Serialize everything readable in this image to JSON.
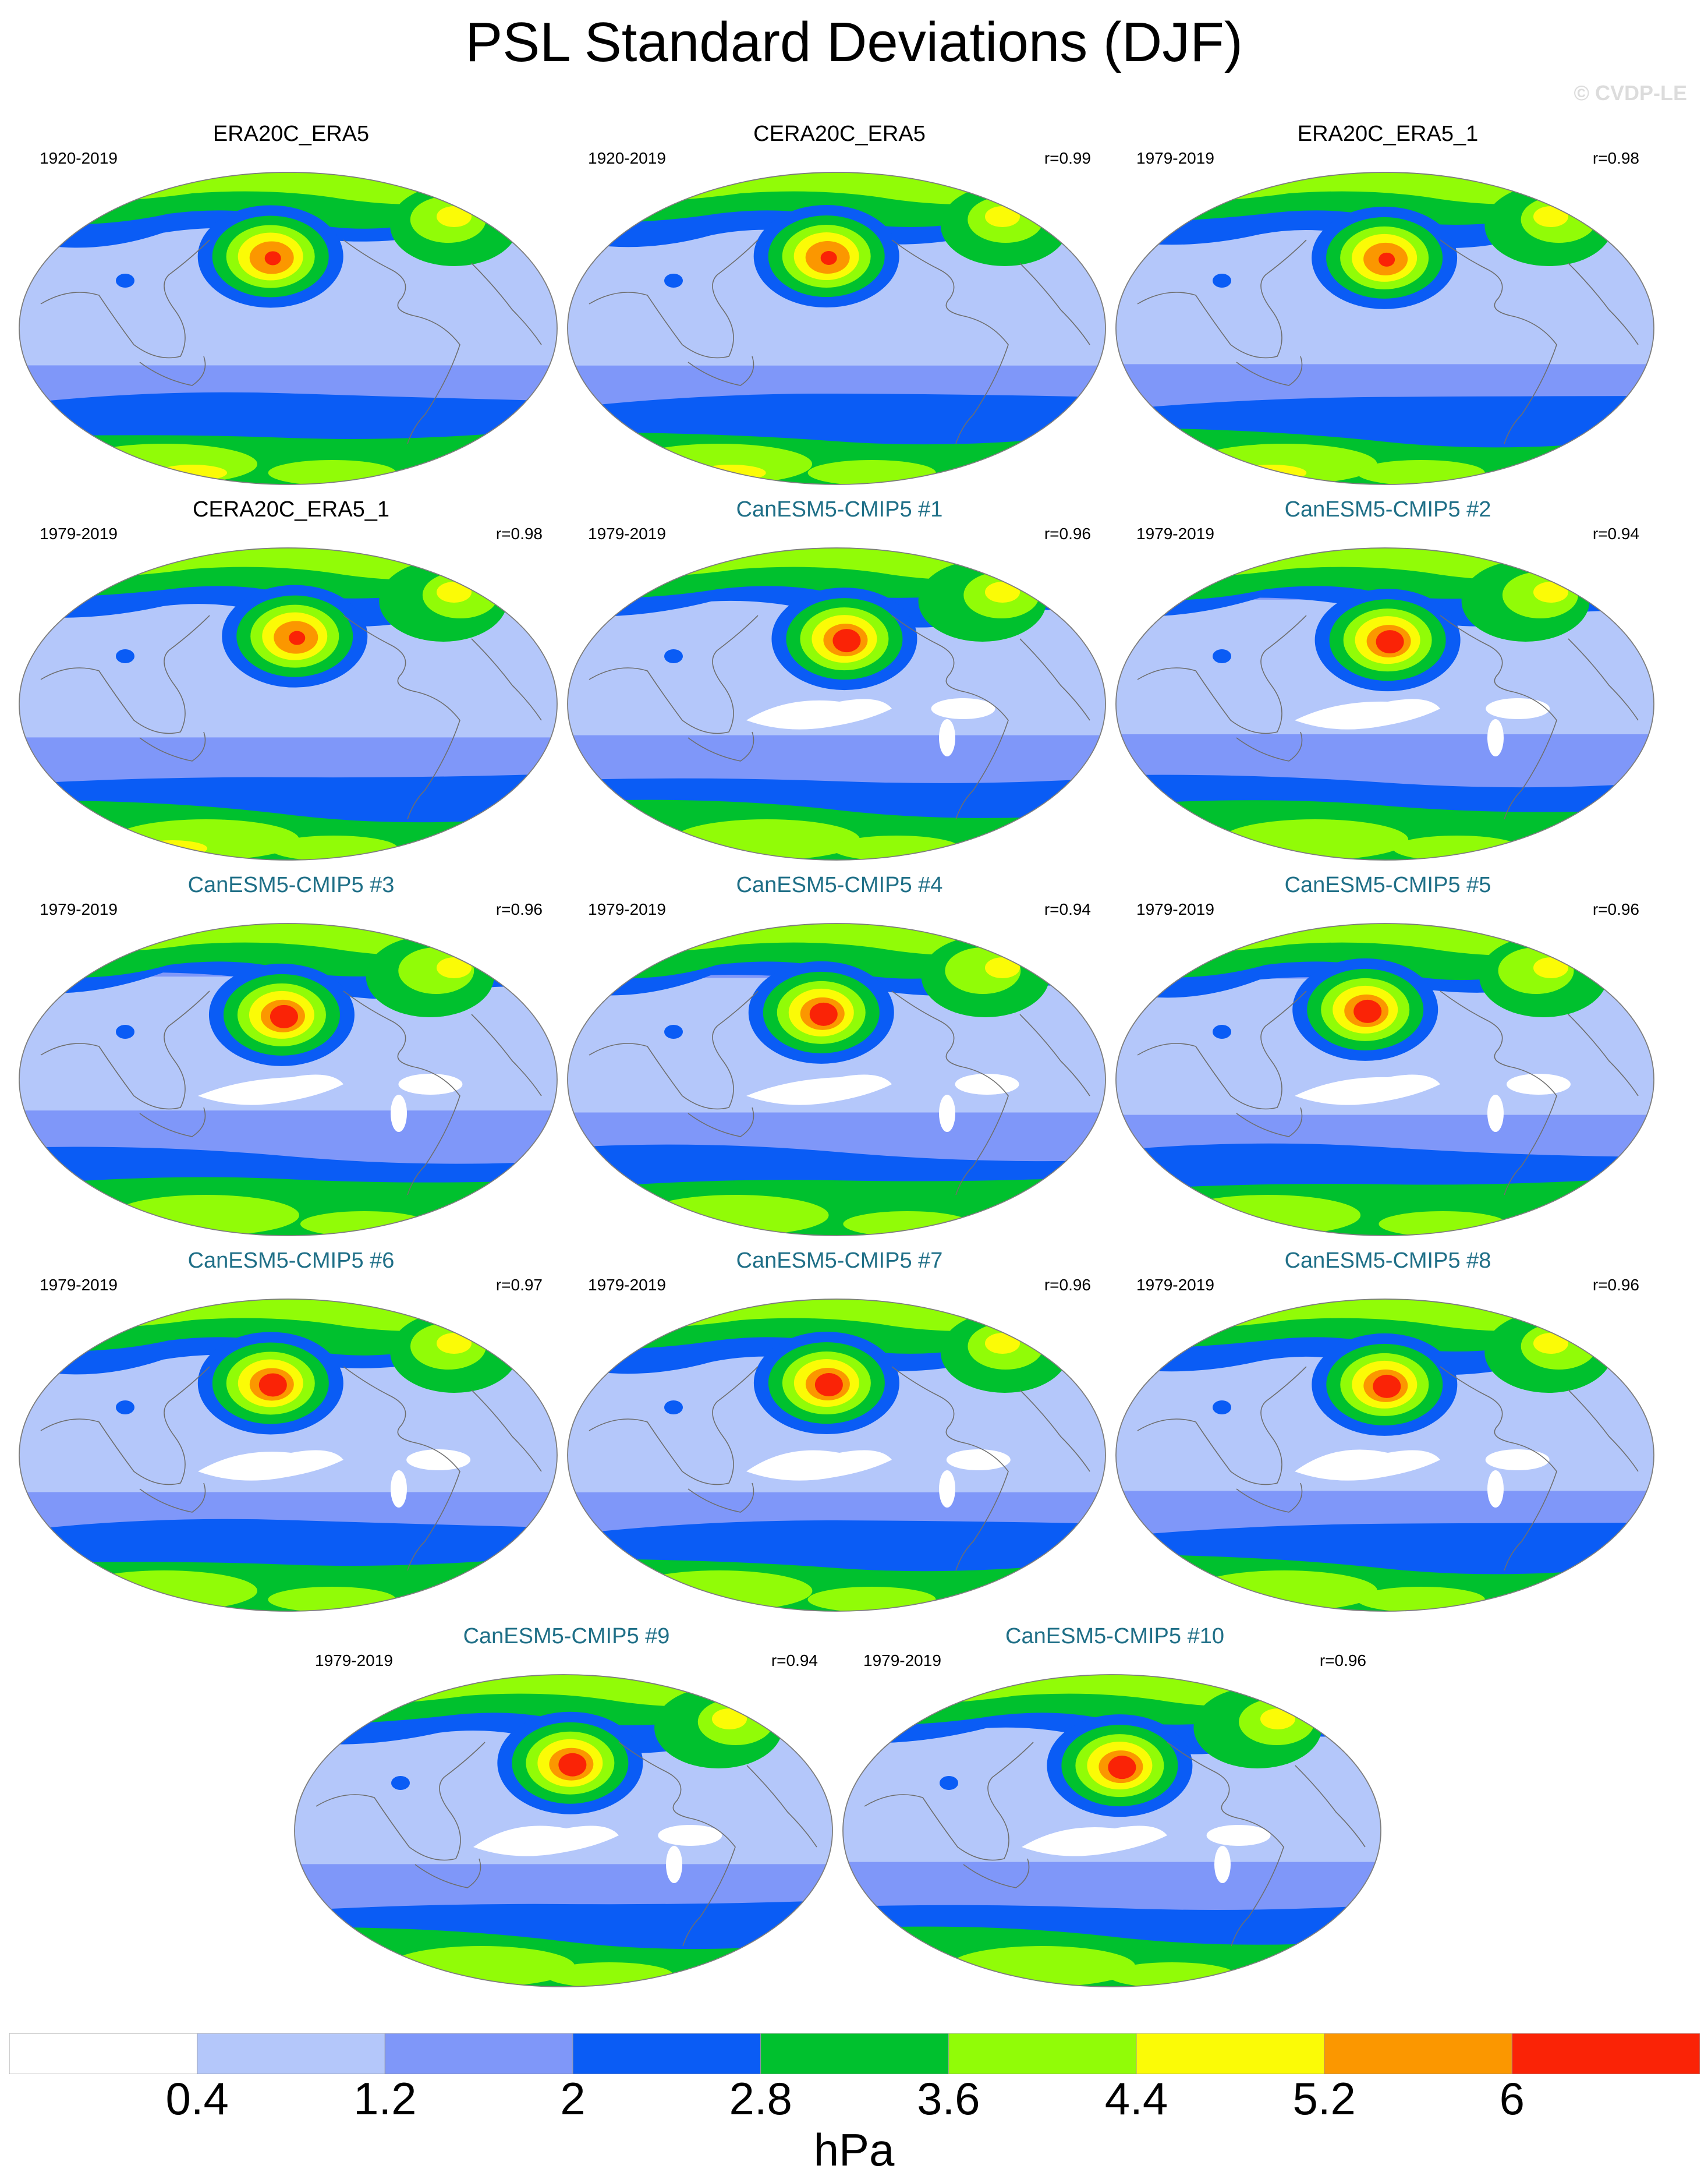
{
  "title": "PSL Standard Deviations (DJF)",
  "watermark": "© CVDP-LE",
  "colorbar": {
    "colors": [
      "#ffffff",
      "#b4c7fa",
      "#7f97f9",
      "#0a5cf5",
      "#00c12e",
      "#91fc07",
      "#fbfb06",
      "#fb9700",
      "#fa2306"
    ],
    "labels": [
      "0.4",
      "1.2",
      "2",
      "2.8",
      "3.6",
      "4.4",
      "5.2",
      "6"
    ],
    "units": "hPa"
  },
  "panels": [
    {
      "title": "ERA20C_ERA5",
      "years": "1920-2019",
      "r": "",
      "kind": "obs"
    },
    {
      "title": "CERA20C_ERA5",
      "years": "1920-2019",
      "r": "r=0.99",
      "kind": "obs"
    },
    {
      "title": "ERA20C_ERA5_1",
      "years": "1979-2019",
      "r": "r=0.98",
      "kind": "obs"
    },
    {
      "title": "CERA20C_ERA5_1",
      "years": "1979-2019",
      "r": "r=0.98",
      "kind": "obs"
    },
    {
      "title": "CanESM5-CMIP5 #1",
      "years": "1979-2019",
      "r": "r=0.96",
      "kind": "model"
    },
    {
      "title": "CanESM5-CMIP5 #2",
      "years": "1979-2019",
      "r": "r=0.94",
      "kind": "model"
    },
    {
      "title": "CanESM5-CMIP5 #3",
      "years": "1979-2019",
      "r": "r=0.96",
      "kind": "model"
    },
    {
      "title": "CanESM5-CMIP5 #4",
      "years": "1979-2019",
      "r": "r=0.94",
      "kind": "model"
    },
    {
      "title": "CanESM5-CMIP5 #5",
      "years": "1979-2019",
      "r": "r=0.96",
      "kind": "model"
    },
    {
      "title": "CanESM5-CMIP5 #6",
      "years": "1979-2019",
      "r": "r=0.97",
      "kind": "model"
    },
    {
      "title": "CanESM5-CMIP5 #7",
      "years": "1979-2019",
      "r": "r=0.96",
      "kind": "model"
    },
    {
      "title": "CanESM5-CMIP5 #8",
      "years": "1979-2019",
      "r": "r=0.96",
      "kind": "model"
    },
    {
      "title": "CanESM5-CMIP5 #9",
      "years": "1979-2019",
      "r": "r=0.94",
      "kind": "model"
    },
    {
      "title": "CanESM5-CMIP5 #10",
      "years": "1979-2019",
      "r": "r=0.96",
      "kind": "model"
    }
  ]
}
